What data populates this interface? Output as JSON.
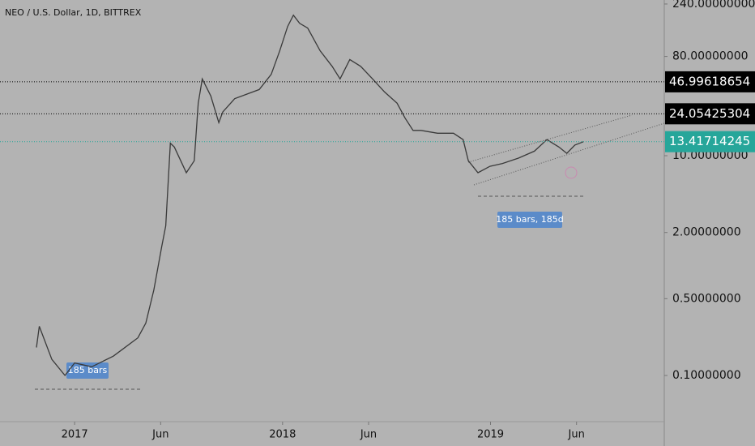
{
  "chart_data": {
    "type": "line",
    "title": "NEO / U.S. Dollar, 1D, BITTREX",
    "log_scale": true,
    "xlim": [
      -131,
      1035
    ],
    "ylim": [
      0.038,
      261
    ],
    "xticks": [
      {
        "value": 0,
        "label": "2017"
      },
      {
        "value": 151,
        "label": "Jun"
      },
      {
        "value": 365,
        "label": "2018"
      },
      {
        "value": 516,
        "label": "Jun"
      },
      {
        "value": 730,
        "label": "2019"
      },
      {
        "value": 881,
        "label": "Jun"
      }
    ],
    "yticks": [
      {
        "value": 240,
        "label": "240.00000000"
      },
      {
        "value": 80,
        "label": "80.00000000"
      },
      {
        "value": 10,
        "label": "10.00000000"
      },
      {
        "value": 2,
        "label": "2.00000000"
      },
      {
        "value": 0.5,
        "label": "0.50000000"
      },
      {
        "value": 0.1,
        "label": "0.10000000"
      }
    ],
    "series": [
      {
        "name": "NEO",
        "color": "#3a3a3a",
        "x": [
          -67,
          -62,
          -40,
          -17,
          0,
          30,
          68,
          82,
          111,
          125,
          139,
          153,
          160,
          168,
          175,
          196,
          210,
          217,
          224,
          239,
          253,
          260,
          281,
          324,
          345,
          360,
          374,
          384,
          395,
          409,
          431,
          452,
          466,
          483,
          502,
          523,
          544,
          566,
          580,
          594,
          608,
          637,
          665,
          682,
          691,
          708,
          729,
          751,
          779,
          807,
          829,
          850,
          864,
          878,
          893
        ],
        "values": [
          0.18,
          0.28,
          0.14,
          0.1,
          0.13,
          0.12,
          0.15,
          0.17,
          0.22,
          0.3,
          0.6,
          1.5,
          2.3,
          13,
          12,
          7,
          9,
          30,
          50,
          35,
          20,
          25,
          33,
          40,
          55,
          90,
          150,
          190,
          160,
          145,
          90,
          65,
          50,
          75,
          65,
          50,
          38,
          30,
          22,
          17,
          17,
          16,
          16,
          14,
          9,
          7,
          8,
          8.5,
          9.5,
          11,
          14,
          12,
          10.5,
          12.5,
          13.4
        ]
      }
    ],
    "levels": [
      {
        "value": 46.99618654,
        "label": "46.99618654",
        "color": "#000000"
      },
      {
        "value": 24.05425304,
        "label": "24.05425304",
        "color": "#000000"
      },
      {
        "value": 13.41714245,
        "label": "13.41714245",
        "color": "#26a69a"
      }
    ],
    "annotations": [
      "185 bars",
      "185 bars, 185d"
    ]
  }
}
